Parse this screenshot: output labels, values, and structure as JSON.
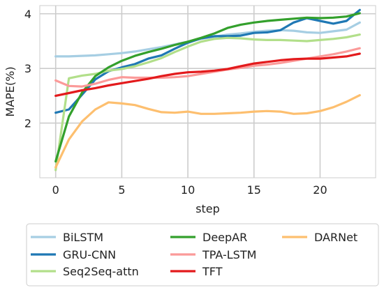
{
  "chart_data": {
    "type": "line",
    "xlabel": "step",
    "ylabel": "MAPE(%)",
    "xlim": [
      -1.2,
      24.2
    ],
    "ylim": [
      1.0,
      4.15
    ],
    "xticks": [
      0,
      5,
      10,
      15,
      20
    ],
    "yticks": [
      2,
      3,
      4
    ],
    "grid": true,
    "legend_position": "bottom",
    "x": [
      0,
      1,
      2,
      3,
      4,
      5,
      6,
      7,
      8,
      9,
      10,
      11,
      12,
      13,
      14,
      15,
      16,
      17,
      18,
      19,
      20,
      21,
      22,
      23
    ],
    "series": [
      {
        "name": "BiLSTM",
        "color": "#a6cee3",
        "values": [
          3.22,
          3.22,
          3.23,
          3.24,
          3.26,
          3.28,
          3.31,
          3.35,
          3.39,
          3.44,
          3.49,
          3.54,
          3.58,
          3.62,
          3.64,
          3.67,
          3.69,
          3.7,
          3.69,
          3.66,
          3.65,
          3.68,
          3.71,
          3.84
        ]
      },
      {
        "name": "GRU-CNN",
        "color": "#1f78b4",
        "values": [
          2.19,
          2.25,
          2.52,
          2.8,
          2.95,
          3.02,
          3.08,
          3.18,
          3.24,
          3.36,
          3.47,
          3.55,
          3.59,
          3.59,
          3.6,
          3.65,
          3.66,
          3.7,
          3.84,
          3.92,
          3.87,
          3.82,
          3.87,
          4.07
        ]
      },
      {
        "name": "Seq2Seq-attn",
        "color": "#b2df8a",
        "values": [
          1.14,
          2.82,
          2.87,
          2.9,
          2.96,
          2.99,
          3.04,
          3.11,
          3.19,
          3.3,
          3.4,
          3.49,
          3.54,
          3.56,
          3.55,
          3.53,
          3.52,
          3.52,
          3.51,
          3.5,
          3.52,
          3.54,
          3.57,
          3.62
        ]
      },
      {
        "name": "DeepAR",
        "color": "#33a02c",
        "values": [
          1.3,
          2.12,
          2.56,
          2.86,
          3.02,
          3.14,
          3.23,
          3.3,
          3.36,
          3.43,
          3.49,
          3.56,
          3.64,
          3.74,
          3.8,
          3.84,
          3.87,
          3.89,
          3.91,
          3.93,
          3.92,
          3.93,
          3.95,
          4.01
        ]
      },
      {
        "name": "TPA-LSTM",
        "color": "#fb9a99",
        "values": [
          2.78,
          2.68,
          2.67,
          2.72,
          2.79,
          2.84,
          2.83,
          2.83,
          2.83,
          2.84,
          2.86,
          2.9,
          2.94,
          2.98,
          3.01,
          3.05,
          3.07,
          3.1,
          3.14,
          3.18,
          3.22,
          3.26,
          3.31,
          3.37
        ]
      },
      {
        "name": "TFT",
        "color": "#e31a1c",
        "values": [
          2.5,
          2.55,
          2.6,
          2.64,
          2.69,
          2.73,
          2.77,
          2.81,
          2.86,
          2.9,
          2.93,
          2.94,
          2.96,
          2.99,
          3.04,
          3.09,
          3.12,
          3.15,
          3.17,
          3.18,
          3.18,
          3.2,
          3.22,
          3.27
        ]
      },
      {
        "name": "DARNet",
        "color": "#fdbf6f",
        "values": [
          1.19,
          1.7,
          2.03,
          2.25,
          2.38,
          2.36,
          2.33,
          2.26,
          2.2,
          2.19,
          2.21,
          2.17,
          2.17,
          2.18,
          2.19,
          2.21,
          2.22,
          2.21,
          2.17,
          2.18,
          2.22,
          2.29,
          2.39,
          2.51
        ]
      }
    ]
  }
}
